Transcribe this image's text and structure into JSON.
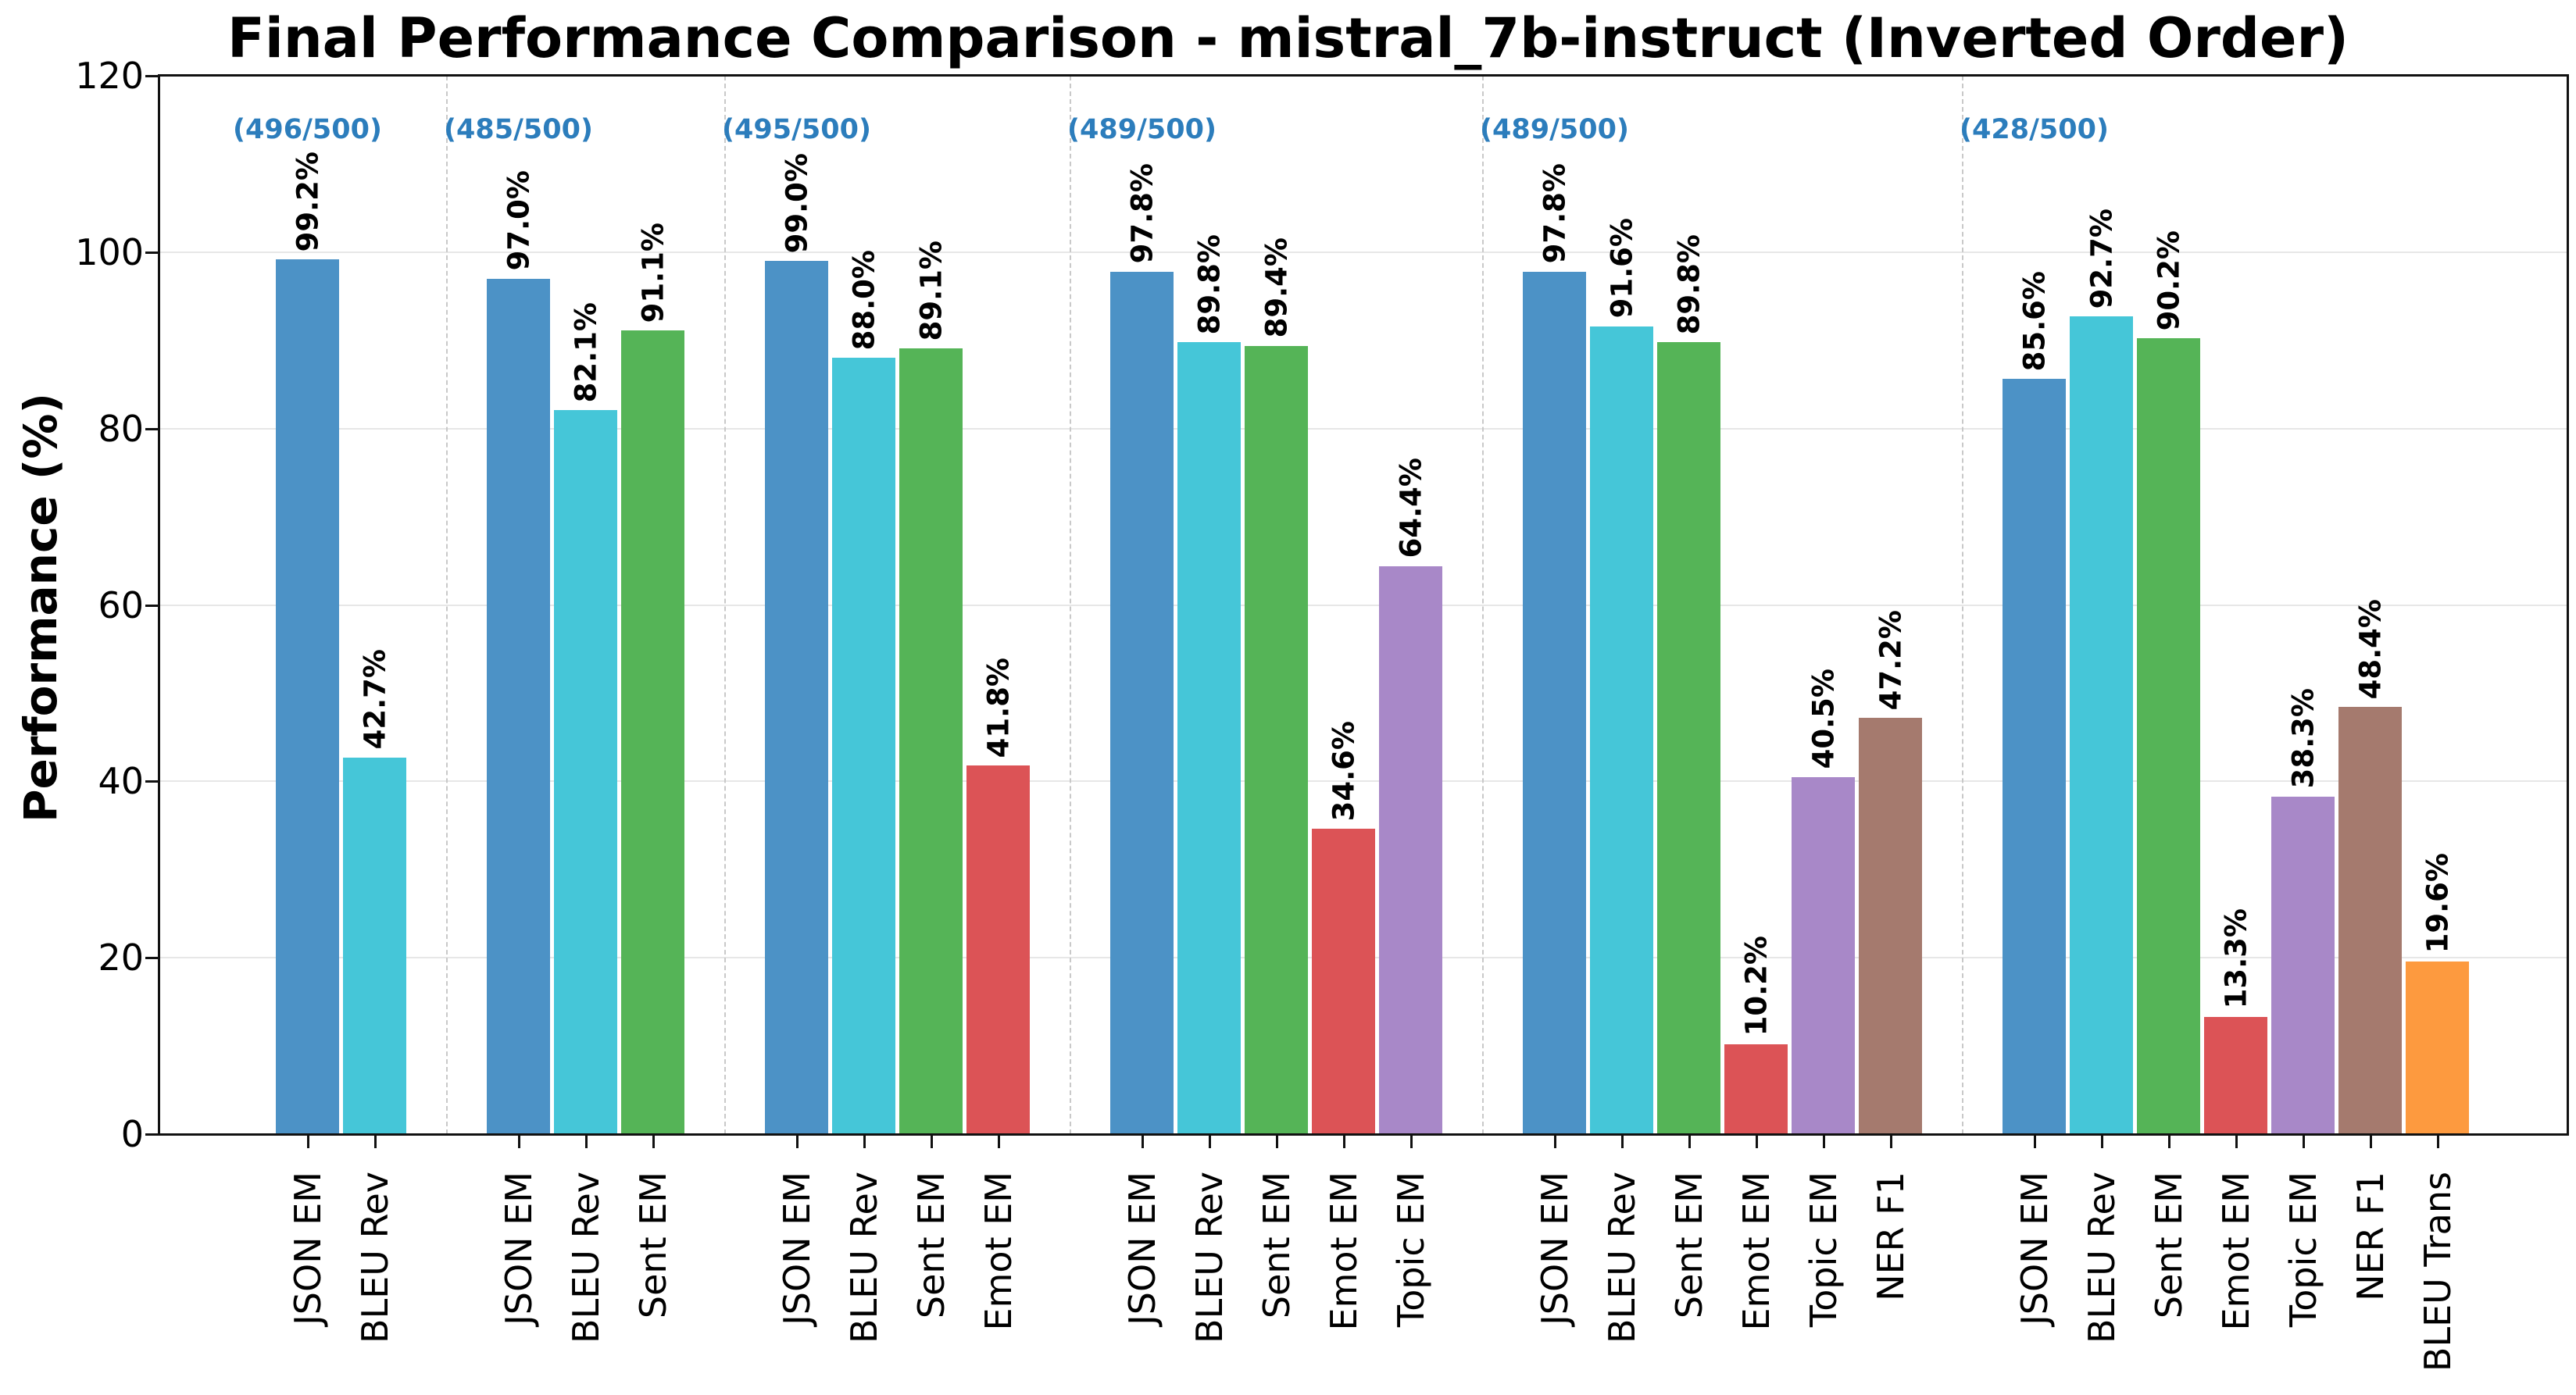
{
  "chart_data": {
    "type": "bar",
    "title": "Final Performance Comparison - mistral_7b-instruct (Inverted Order)",
    "xlabel": "",
    "ylabel": "Performance (%)",
    "ylim": [
      0,
      120
    ],
    "yticks": [
      0,
      20,
      40,
      60,
      80,
      100,
      120
    ],
    "grid": {
      "horizontal": "solid",
      "group_separators": "dashed"
    },
    "legend_position": "none",
    "value_suffix": "%",
    "metric_colors": {
      "JSON EM": "#4c92c6",
      "BLEU Rev": "#45c6d8",
      "Sent EM": "#55b457",
      "Emot EM": "#dc5356",
      "Topic EM": "#a888c8",
      "NER F1": "#a57a6e",
      "BLEU Trans": "#fd9a3f"
    },
    "groups": [
      {
        "count_label": "(496/500)",
        "bars": [
          {
            "label": "JSON EM",
            "value": 99.2
          },
          {
            "label": "BLEU Rev",
            "value": 42.7
          }
        ]
      },
      {
        "count_label": "(485/500)",
        "bars": [
          {
            "label": "JSON EM",
            "value": 97.0
          },
          {
            "label": "BLEU Rev",
            "value": 82.1
          },
          {
            "label": "Sent EM",
            "value": 91.1
          }
        ]
      },
      {
        "count_label": "(495/500)",
        "bars": [
          {
            "label": "JSON EM",
            "value": 99.0
          },
          {
            "label": "BLEU Rev",
            "value": 88.0
          },
          {
            "label": "Sent EM",
            "value": 89.1
          },
          {
            "label": "Emot EM",
            "value": 41.8
          }
        ]
      },
      {
        "count_label": "(489/500)",
        "bars": [
          {
            "label": "JSON EM",
            "value": 97.8
          },
          {
            "label": "BLEU Rev",
            "value": 89.8
          },
          {
            "label": "Sent EM",
            "value": 89.4
          },
          {
            "label": "Emot EM",
            "value": 34.6
          },
          {
            "label": "Topic EM",
            "value": 64.4
          }
        ]
      },
      {
        "count_label": "(489/500)",
        "bars": [
          {
            "label": "JSON EM",
            "value": 97.8
          },
          {
            "label": "BLEU Rev",
            "value": 91.6
          },
          {
            "label": "Sent EM",
            "value": 89.8
          },
          {
            "label": "Emot EM",
            "value": 10.2
          },
          {
            "label": "Topic EM",
            "value": 40.5
          },
          {
            "label": "NER F1",
            "value": 47.2
          }
        ]
      },
      {
        "count_label": "(428/500)",
        "bars": [
          {
            "label": "JSON EM",
            "value": 85.6
          },
          {
            "label": "BLEU Rev",
            "value": 92.7
          },
          {
            "label": "Sent EM",
            "value": 90.2
          },
          {
            "label": "Emot EM",
            "value": 13.3
          },
          {
            "label": "Topic EM",
            "value": 38.3
          },
          {
            "label": "NER F1",
            "value": 48.4
          },
          {
            "label": "BLEU Trans",
            "value": 19.6
          }
        ]
      }
    ],
    "colors": {
      "count_label_text": "#2c7dbc",
      "gridline": "#e7e7e7",
      "separator": "#c9c9c9",
      "axis": "#111111",
      "background": "#ffffff"
    }
  }
}
